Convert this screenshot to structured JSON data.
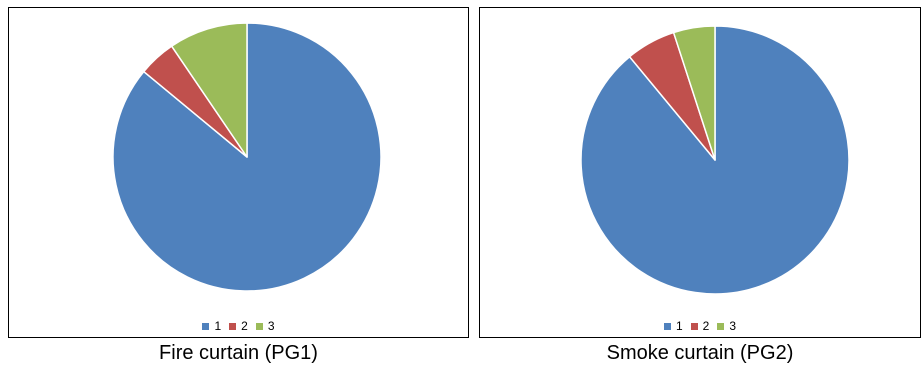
{
  "chart_data": [
    {
      "type": "pie",
      "categories": [
        "1",
        "2",
        "3"
      ],
      "values": [
        86,
        4.5,
        9.5
      ],
      "colors": [
        "#4f81bd",
        "#c0504d",
        "#9bbb59"
      ],
      "legend": "bottom",
      "caption": "Fire curtain (PG1)"
    },
    {
      "type": "pie",
      "categories": [
        "1",
        "2",
        "3"
      ],
      "values": [
        89,
        6,
        5
      ],
      "colors": [
        "#4f81bd",
        "#c0504d",
        "#9bbb59"
      ],
      "legend": "bottom",
      "caption": "Smoke curtain (PG2)"
    }
  ]
}
